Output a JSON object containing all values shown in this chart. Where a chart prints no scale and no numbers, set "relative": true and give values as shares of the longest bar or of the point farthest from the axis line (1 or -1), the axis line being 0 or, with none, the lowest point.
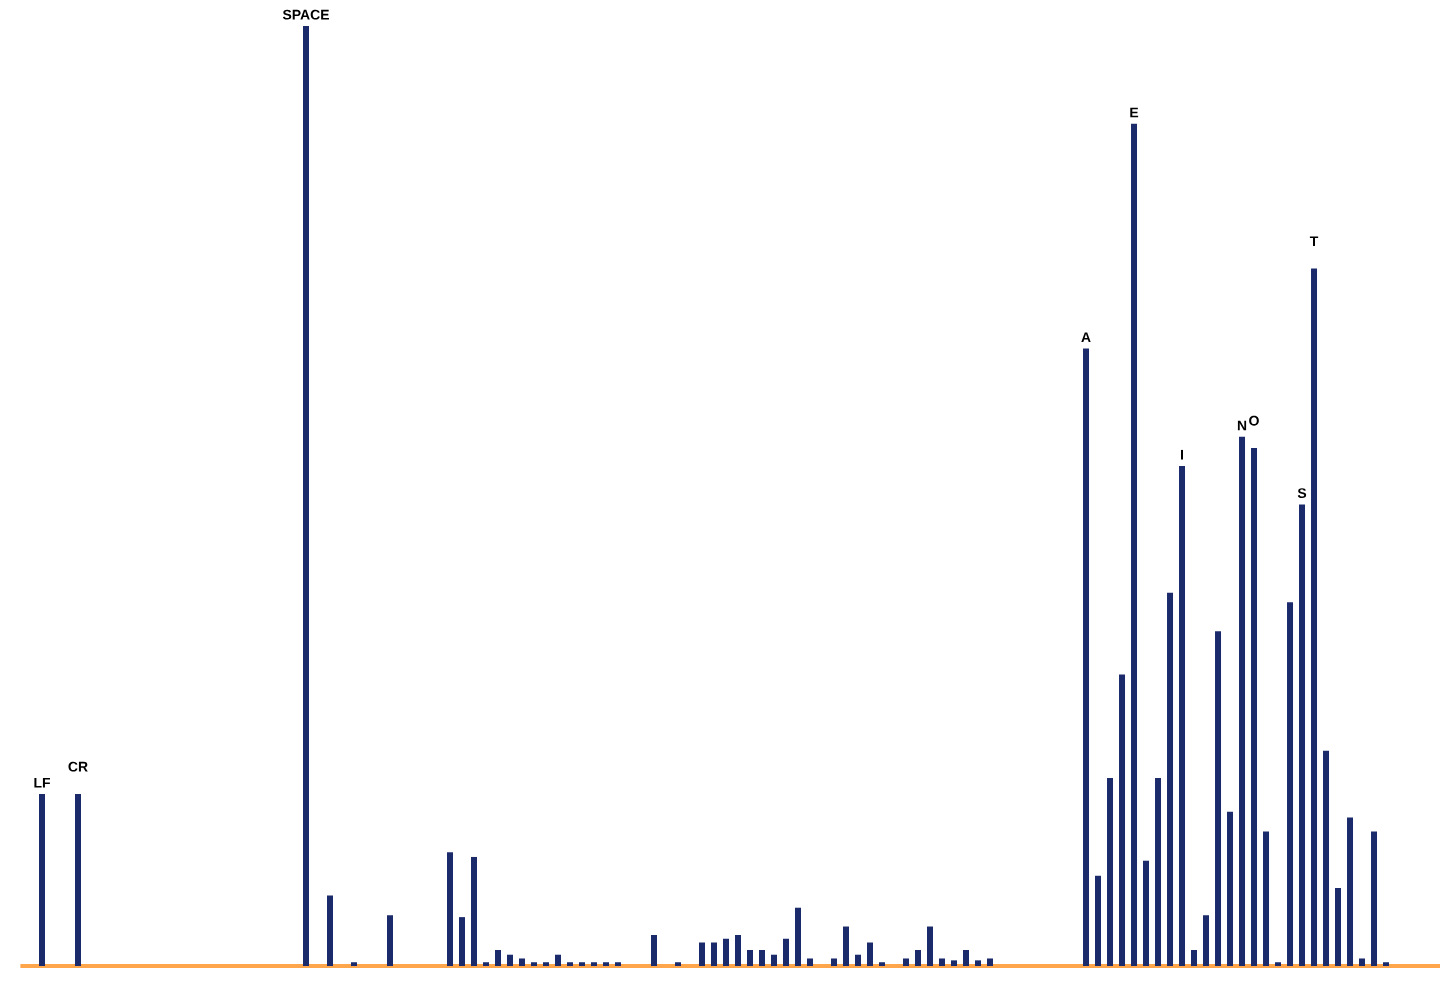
{
  "chart_data": {
    "type": "bar",
    "relative": true,
    "color": "#1b2a6b",
    "categories": [
      "LF",
      null,
      null,
      "CR",
      null,
      null,
      null,
      null,
      null,
      null,
      null,
      null,
      null,
      null,
      null,
      null,
      null,
      null,
      null,
      null,
      null,
      null,
      "SPACE",
      null,
      null,
      null,
      null,
      null,
      null,
      null,
      null,
      null,
      null,
      null,
      null,
      null,
      null,
      null,
      null,
      null,
      null,
      null,
      null,
      null,
      null,
      null,
      null,
      null,
      null,
      null,
      null,
      null,
      null,
      null,
      null,
      null,
      null,
      null,
      null,
      null,
      null,
      null,
      null,
      null,
      null,
      null,
      null,
      null,
      null,
      null,
      null,
      null,
      null,
      null,
      null,
      null,
      null,
      null,
      null,
      null,
      null,
      null,
      null,
      null,
      null,
      null,
      null,
      "A",
      null,
      null,
      null,
      "E",
      null,
      null,
      null,
      "I",
      null,
      null,
      null,
      null,
      "N",
      "O",
      null,
      null,
      null,
      "S",
      "T",
      null,
      null,
      null,
      null,
      null,
      null
    ],
    "values": [
      0.183,
      0,
      0,
      0.183,
      0,
      0,
      0,
      0,
      0,
      0,
      0,
      0,
      0,
      0,
      0,
      0,
      0,
      0,
      0,
      0,
      0,
      0,
      1,
      0,
      0.075,
      0,
      0.004,
      0,
      0,
      0.054,
      0,
      0,
      0,
      0,
      0.121,
      0.052,
      0.116,
      0.004,
      0.017,
      0.012,
      0.008,
      0.004,
      0.004,
      0.012,
      0.004,
      0.004,
      0.004,
      0.004,
      0.004,
      0,
      0,
      0.033,
      0,
      0.004,
      0,
      0.025,
      0.025,
      0.029,
      0.033,
      0.017,
      0.017,
      0.012,
      0.029,
      0.062,
      0.008,
      0,
      0.008,
      0.042,
      0.012,
      0.025,
      0.004,
      0,
      0.008,
      0.017,
      0.042,
      0.008,
      0.006,
      0.017,
      0.006,
      0.008,
      0,
      0,
      0,
      0,
      0,
      0,
      0,
      0.657,
      0.096,
      0.2,
      0.31,
      0.896,
      0.112,
      0.2,
      0.397,
      0.532,
      0.017,
      0.054,
      0.356,
      0.164,
      0.563,
      0.551,
      0.143,
      0.004,
      0.387,
      0.491,
      0.742,
      0.229,
      0.083,
      0.158,
      0.008,
      0.143,
      0.004
    ]
  }
}
